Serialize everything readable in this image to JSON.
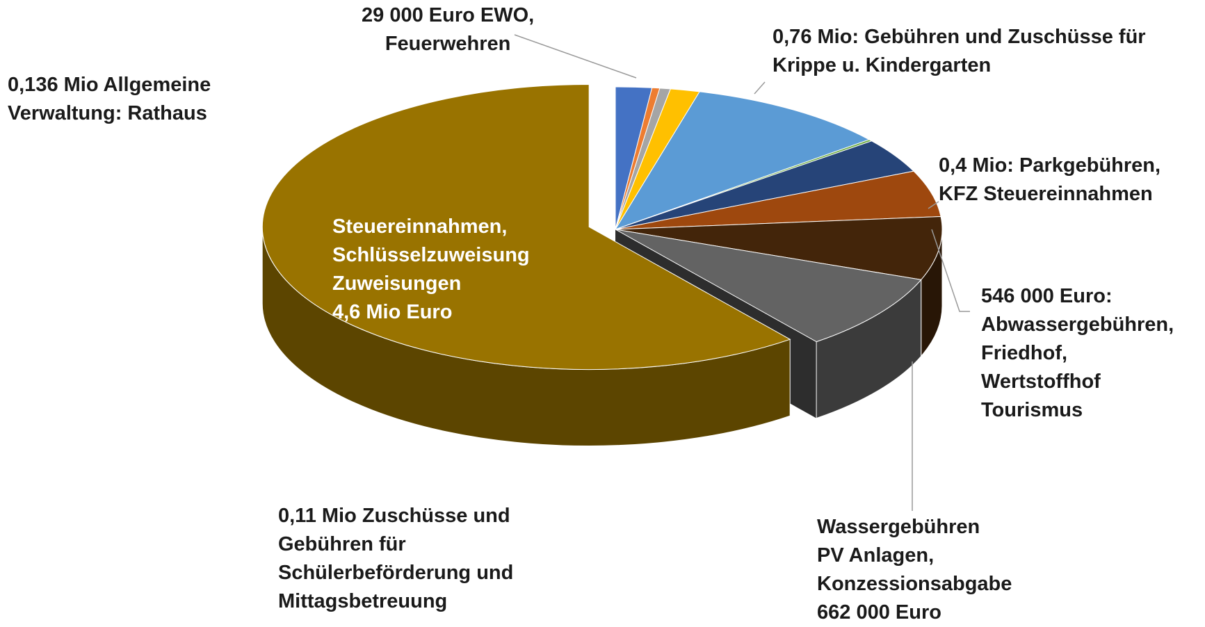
{
  "chart_data": {
    "type": "pie3d",
    "categories": [
      "0,136 Mio Allgemeine\nVerwaltung: Rathaus",
      "29 000 Euro EWO,\nFeuerwehren",
      null,
      "0,11 Mio Zuschüsse und\nGebühren für\nSchülerbeförderung und\nMittagsbetreuung",
      "0,76 Mio: Gebühren und Zuschüsse für\nKrippe u. Kindergarten",
      null,
      null,
      "0,4 Mio: Parkgebühren,\nKFZ Steuereinnahmen",
      "546 000 Euro:\nAbwassergebühren,\nFriedhof,\nWertstoffhof\nTourismus",
      "Wassergebühren\nPV Anlagen,\nKonzessionsabgabe\n662 000 Euro",
      "Steuereinnahmen,\nSchlüsselzuweisung\nZuweisungen\n4,6 Mio Euro"
    ],
    "values": [
      136000,
      29000,
      40000,
      110000,
      760000,
      15000,
      300000,
      400000,
      546000,
      662000,
      4600000
    ],
    "colors": [
      "#4472c4",
      "#ed7d31",
      "#a5a5a5",
      "#ffc000",
      "#5b9bd5",
      "#70ad47",
      "#264478",
      "#9e480e",
      "#43250a",
      "#636363",
      "#997300"
    ]
  }
}
